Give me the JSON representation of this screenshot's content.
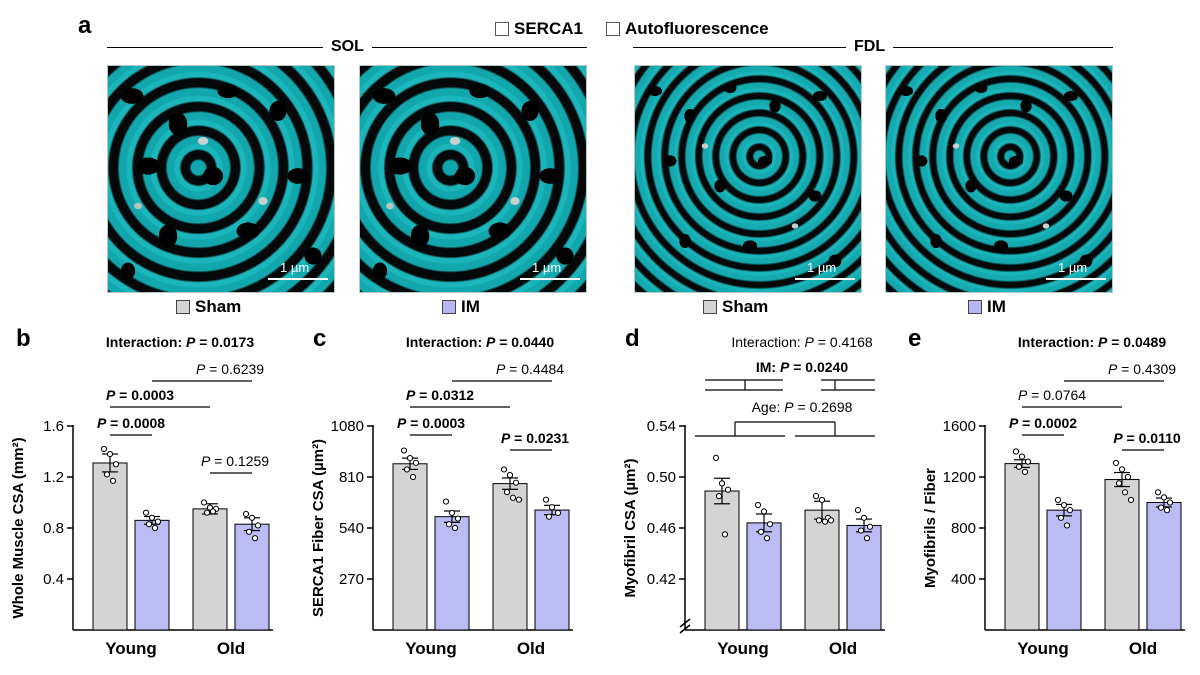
{
  "panel_a": {
    "letter": "a",
    "legend": [
      {
        "label": "SERCA1",
        "color": "#19d3da"
      },
      {
        "label": "Autofluorescence",
        "color": "#b3b3b3"
      }
    ],
    "regions": [
      "SOL",
      "FDL"
    ],
    "scale_bar": "1 µm",
    "conditions": [
      {
        "label": "Sham",
        "color": "#d4d4d4"
      },
      {
        "label": "IM",
        "color": "#b6b6f2"
      }
    ]
  },
  "colors": {
    "sham": "#d4d4d4",
    "im": "#bcbcf5"
  },
  "chart_data": [
    {
      "letter": "b",
      "type": "bar",
      "ylabel": "Whole Muscle CSA (mm²)",
      "ylim": [
        0,
        1.6
      ],
      "yticks": [
        "1.6",
        "1.2",
        "0.8",
        "0.4"
      ],
      "tick_values": [
        1.6,
        1.2,
        0.8,
        0.4
      ],
      "axis_break": false,
      "categories": [
        "Young",
        "Old"
      ],
      "series": [
        {
          "name": "Sham",
          "values": [
            1.31,
            0.95
          ],
          "sem": [
            0.07,
            0.04
          ],
          "points": [
            [
              1.42,
              1.38,
              1.3,
              1.22,
              1.17
            ],
            [
              1.0,
              0.96,
              0.95,
              0.92,
              0.93
            ]
          ]
        },
        {
          "name": "IM",
          "values": [
            0.86,
            0.83
          ],
          "sem": [
            0.03,
            0.05
          ],
          "points": [
            [
              0.92,
              0.88,
              0.85,
              0.83,
              0.8
            ],
            [
              0.91,
              0.88,
              0.82,
              0.77,
              0.72
            ]
          ]
        }
      ],
      "annotations": [
        {
          "p": "Interaction:",
          "v": "P = 0.0173",
          "bold": true
        },
        {
          "v": "P = 0.6239",
          "bold": false
        },
        {
          "v": "P = 0.0003",
          "bold": true
        },
        {
          "v": "P = 0.0008",
          "bold": true
        },
        {
          "v": "P = 0.1259",
          "bold": false
        }
      ]
    },
    {
      "letter": "c",
      "type": "bar",
      "ylabel": "SERCA1 Fiber CSA (µm²)",
      "ylim": [
        0,
        1080
      ],
      "yticks": [
        "1080",
        "810",
        "540",
        "270"
      ],
      "tick_values": [
        1080,
        810,
        540,
        270
      ],
      "axis_break": false,
      "categories": [
        "Young",
        "Old"
      ],
      "series": [
        {
          "name": "Sham",
          "values": [
            880,
            775
          ],
          "sem": [
            30,
            30
          ],
          "points": [
            [
              950,
              910,
              885,
              850,
              810
            ],
            [
              850,
              820,
              780,
              730,
              700,
              690
            ]
          ]
        },
        {
          "name": "IM",
          "values": [
            600,
            635
          ],
          "sem": [
            30,
            25
          ],
          "points": [
            [
              680,
              620,
              590,
              560,
              540
            ],
            [
              690,
              650,
              620,
              600
            ]
          ]
        }
      ],
      "annotations": [
        {
          "p": "Interaction:",
          "v": "P = 0.0440",
          "bold": true
        },
        {
          "v": "P = 0.4484",
          "bold": false
        },
        {
          "v": "P = 0.0312",
          "bold": true
        },
        {
          "v": "P = 0.0003",
          "bold": true
        },
        {
          "v": "P = 0.0231",
          "bold": true
        }
      ]
    },
    {
      "letter": "d",
      "type": "bar",
      "ylabel": "Myofibril CSA (µm²)",
      "ylim": [
        0.38,
        0.54
      ],
      "yticks": [
        "0.54",
        "0.50",
        "0.46",
        "0.42"
      ],
      "tick_values": [
        0.54,
        0.5,
        0.46,
        0.42
      ],
      "axis_break": true,
      "categories": [
        "Young",
        "Old"
      ],
      "series": [
        {
          "name": "Sham",
          "values": [
            0.489,
            0.474
          ],
          "sem": [
            0.01,
            0.007
          ],
          "points": [
            [
              0.515,
              0.495,
              0.49,
              0.485,
              0.455
            ],
            [
              0.485,
              0.482,
              0.468,
              0.466,
              0.465,
              0.466
            ]
          ]
        },
        {
          "name": "IM",
          "values": [
            0.464,
            0.462
          ],
          "sem": [
            0.007,
            0.005
          ],
          "points": [
            [
              0.478,
              0.473,
              0.463,
              0.457,
              0.452
            ],
            [
              0.474,
              0.468,
              0.461,
              0.458,
              0.452
            ]
          ]
        }
      ],
      "annotations": [
        {
          "p": "Interaction:",
          "v": "P = 0.4168",
          "bold": false
        },
        {
          "p": "IM:",
          "v": "P = 0.0240",
          "bold": true
        },
        {
          "p": "Age:",
          "v": "P = 0.2698",
          "bold": false
        }
      ]
    },
    {
      "letter": "e",
      "type": "bar",
      "ylabel": "Myofibrils / Fiber",
      "ylim": [
        0,
        1600
      ],
      "yticks": [
        "1600",
        "1200",
        "800",
        "400"
      ],
      "tick_values": [
        1600,
        1200,
        800,
        400
      ],
      "axis_break": false,
      "categories": [
        "Young",
        "Old"
      ],
      "series": [
        {
          "name": "Sham",
          "values": [
            1305,
            1180
          ],
          "sem": [
            30,
            55
          ],
          "points": [
            [
              1400,
              1360,
              1320,
              1280,
              1240
            ],
            [
              1310,
              1260,
              1200,
              1150,
              1080,
              1020
            ]
          ]
        },
        {
          "name": "IM",
          "values": [
            940,
            1000
          ],
          "sem": [
            45,
            35
          ],
          "points": [
            [
              1020,
              980,
              940,
              880,
              820
            ],
            [
              1080,
              1040,
              1000,
              960,
              940
            ]
          ]
        }
      ],
      "annotations": [
        {
          "p": "Interaction:",
          "v": "P = 0.0489",
          "bold": true
        },
        {
          "v": "P = 0.4309",
          "bold": false
        },
        {
          "v": "P = 0.0764",
          "bold": false
        },
        {
          "v": "P = 0.0002",
          "bold": true
        },
        {
          "v": "P = 0.0110",
          "bold": true
        }
      ]
    }
  ]
}
